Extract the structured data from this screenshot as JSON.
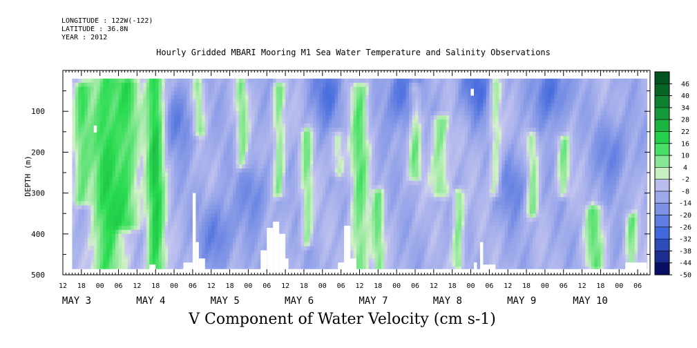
{
  "meta": {
    "longitude": "LONGITUDE : 122W(-122)",
    "latitude": "LATITUDE : 36.8N",
    "year": "YEAR : 2012"
  },
  "chart_data": {
    "type": "heatmap",
    "title": "Hourly Gridded MBARI Mooring M1 Sea Water Temperature and Salinity Observations",
    "variable_title": "V Component of Water Velocity (cm s-1)",
    "ylabel": "DEPTH (m)",
    "y_inverted": true,
    "ylim": [
      0,
      500
    ],
    "y_ticks": [
      100,
      200,
      300,
      400,
      500
    ],
    "x_start": "MAY 2 12:00",
    "x_end": "MAY 10 08:00",
    "x_hour_ticks": [
      "12",
      "18",
      "00",
      "06",
      "12",
      "18",
      "00",
      "06",
      "12",
      "18",
      "00",
      "06",
      "12",
      "18",
      "00",
      "06",
      "12",
      "18",
      "00",
      "06",
      "12",
      "18",
      "00",
      "06",
      "12",
      "18",
      "00",
      "06",
      "12",
      "18",
      "00",
      "06"
    ],
    "x_day_labels": [
      "MAY  3",
      "MAY  4",
      "MAY  5",
      "MAY  6",
      "MAY  7",
      "MAY  8",
      "MAY  9",
      "MAY 10"
    ],
    "data_start_hour": 3,
    "data_end_hour": 189,
    "data_depth_range": [
      20,
      485
    ],
    "colorbar_levels": [
      48,
      46,
      40,
      34,
      28,
      22,
      16,
      10,
      4,
      -2,
      -8,
      -14,
      -20,
      -26,
      -32,
      -38,
      -44,
      -50
    ],
    "colorbar_labels": [
      "46",
      "40",
      "34",
      "28",
      "22",
      "16",
      "10",
      "4",
      "-2",
      "-8",
      "-14",
      "-20",
      "-26",
      "-32",
      "-38",
      "-44",
      "-50"
    ],
    "colors": {
      "negative_deep": "#000050",
      "negative_mid": "#3c64dc",
      "negative_light": "#c8c8f0",
      "positive_light": "#d2f0c8",
      "positive_mid": "#28dc50",
      "positive_deep": "#00501e"
    },
    "positive_plumes": [
      {
        "hour": 6,
        "width_h": 3,
        "z0": 40,
        "z1": 320,
        "v": 8
      },
      {
        "hour": 14,
        "width_h": 5,
        "z0": 20,
        "z1": 485,
        "v": 14
      },
      {
        "hour": 21,
        "width_h": 4,
        "z0": 30,
        "z1": 380,
        "v": 10
      },
      {
        "hour": 30,
        "width_h": 3,
        "z0": 20,
        "z1": 485,
        "v": 18
      },
      {
        "hour": 44,
        "width_h": 2,
        "z0": 30,
        "z1": 150,
        "v": 6
      },
      {
        "hour": 58,
        "width_h": 2,
        "z0": 30,
        "z1": 230,
        "v": 5
      },
      {
        "hour": 70,
        "width_h": 2,
        "z0": 40,
        "z1": 300,
        "v": 7
      },
      {
        "hour": 79,
        "width_h": 2,
        "z0": 150,
        "z1": 420,
        "v": 5
      },
      {
        "hour": 89,
        "width_h": 2,
        "z0": 160,
        "z1": 250,
        "v": 4
      },
      {
        "hour": 96,
        "width_h": 3,
        "z0": 40,
        "z1": 485,
        "v": 9
      },
      {
        "hour": 102,
        "width_h": 2,
        "z0": 300,
        "z1": 485,
        "v": 6
      },
      {
        "hour": 114,
        "width_h": 2,
        "z0": 40,
        "z1": 260,
        "v": 6
      },
      {
        "hour": 122,
        "width_h": 3,
        "z0": 120,
        "z1": 300,
        "v": 7
      },
      {
        "hour": 128,
        "width_h": 2,
        "z0": 300,
        "z1": 480,
        "v": 7
      },
      {
        "hour": 140,
        "width_h": 2,
        "z0": 30,
        "z1": 300,
        "v": 4
      },
      {
        "hour": 152,
        "width_h": 2,
        "z0": 160,
        "z1": 350,
        "v": 6
      },
      {
        "hour": 162,
        "width_h": 2,
        "z0": 170,
        "z1": 300,
        "v": 5
      },
      {
        "hour": 172,
        "width_h": 3,
        "z0": 340,
        "z1": 480,
        "v": 8
      },
      {
        "hour": 184,
        "width_h": 2,
        "z0": 360,
        "z1": 480,
        "v": 7
      }
    ],
    "negative_cores": [
      {
        "hour": 38,
        "z": 120,
        "v": -22
      },
      {
        "hour": 50,
        "z": 400,
        "v": -24
      },
      {
        "hour": 62,
        "z": 300,
        "v": -20
      },
      {
        "hour": 86,
        "z": 50,
        "v": -26
      },
      {
        "hour": 110,
        "z": 60,
        "v": -28
      },
      {
        "hour": 134,
        "z": 40,
        "v": -26
      },
      {
        "hour": 146,
        "z": 280,
        "v": -22
      },
      {
        "hour": 158,
        "z": 50,
        "v": -28
      },
      {
        "hour": 178,
        "z": 200,
        "v": -22
      }
    ],
    "missing_blocks": [
      {
        "h0": 10,
        "h1": 11,
        "z0": 135,
        "z1": 150
      },
      {
        "h0": 132,
        "h1": 133,
        "z0": 45,
        "z1": 60
      },
      {
        "h0": 42,
        "h1": 43,
        "z0": 300,
        "z1": 485
      },
      {
        "h0": 43,
        "h1": 44,
        "z0": 420,
        "z1": 485
      },
      {
        "h0": 44,
        "h1": 46,
        "z0": 460,
        "z1": 485
      },
      {
        "h0": 39,
        "h1": 42,
        "z0": 470,
        "z1": 485
      },
      {
        "h0": 28,
        "h1": 30,
        "z0": 475,
        "z1": 485
      },
      {
        "h0": 66,
        "h1": 68,
        "z0": 385,
        "z1": 485
      },
      {
        "h0": 68,
        "h1": 70,
        "z0": 370,
        "z1": 485
      },
      {
        "h0": 70,
        "h1": 72,
        "z0": 400,
        "z1": 485
      },
      {
        "h0": 64,
        "h1": 66,
        "z0": 440,
        "z1": 485
      },
      {
        "h0": 72,
        "h1": 73,
        "z0": 460,
        "z1": 485
      },
      {
        "h0": 91,
        "h1": 93,
        "z0": 380,
        "z1": 485
      },
      {
        "h0": 93,
        "h1": 95,
        "z0": 460,
        "z1": 485
      },
      {
        "h0": 89,
        "h1": 91,
        "z0": 470,
        "z1": 485
      },
      {
        "h0": 135,
        "h1": 136,
        "z0": 420,
        "z1": 485
      },
      {
        "h0": 136,
        "h1": 140,
        "z0": 475,
        "z1": 485
      },
      {
        "h0": 133,
        "h1": 134,
        "z0": 470,
        "z1": 485
      },
      {
        "h0": 182,
        "h1": 189,
        "z0": 470,
        "z1": 485
      }
    ]
  }
}
